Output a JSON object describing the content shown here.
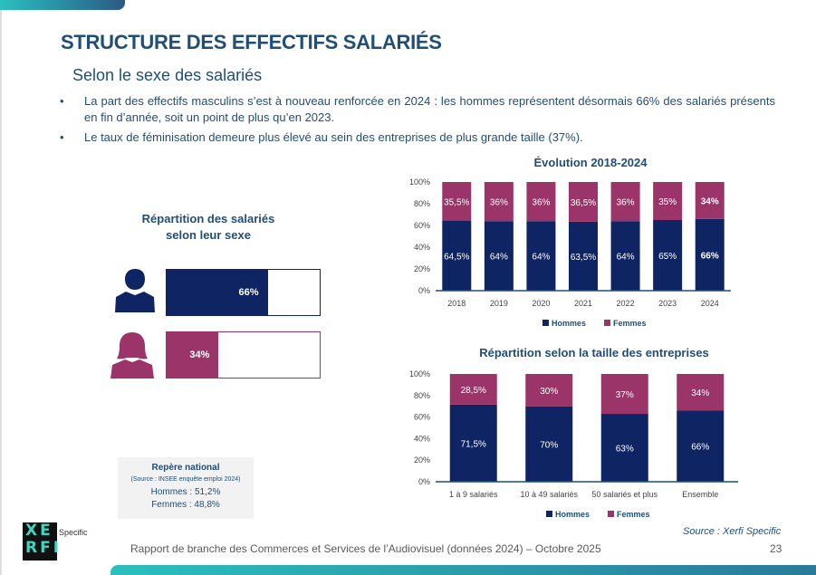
{
  "title": "STRUCTURE DES EFFECTIFS SALARIÉS",
  "subtitle": "Selon le sexe des salariés",
  "bullets": [
    "La part des effectifs masculins s’est à nouveau renforcée en 2024 : les hommes représentent désormais 66% des salariés présents en fin d’année, soit un point de plus qu’en 2023.",
    "Le taux de féminisation demeure plus élevé au sein des entreprises de plus grande taille (37%)."
  ],
  "colors": {
    "hommes": "#0f2462",
    "femmes": "#9b3468",
    "title": "#1f4e79"
  },
  "repartition": {
    "title_line1": "Répartition des salariés",
    "title_line2": "selon leur sexe",
    "hommes": {
      "icon": "man-icon",
      "value": 66,
      "label": "66%"
    },
    "femmes": {
      "icon": "woman-icon",
      "value": 34,
      "label": "34%"
    }
  },
  "repere": {
    "title": "Repère national",
    "source": "(Source : INSEE enquête emploi 2024)",
    "hommes": "Hommes : 51,2%",
    "femmes": "Femmes : 48,8%"
  },
  "chart_data": [
    {
      "type": "bar",
      "stacked": true,
      "title": "Évolution 2018-2024",
      "categories": [
        "2018",
        "2019",
        "2020",
        "2021",
        "2022",
        "2023",
        "2024"
      ],
      "ylim": [
        0,
        100
      ],
      "yticks": [
        "0%",
        "20%",
        "40%",
        "60%",
        "80%",
        "100%"
      ],
      "legend": "bottom",
      "series": [
        {
          "name": "Hommes",
          "values": [
            64.5,
            64,
            64,
            63.5,
            64,
            65,
            66
          ],
          "labels": [
            "64,5%",
            "64%",
            "64%",
            "63,5%",
            "64%",
            "65%",
            "66%"
          ]
        },
        {
          "name": "Femmes",
          "values": [
            35.5,
            36,
            36,
            36.5,
            36,
            35,
            34
          ],
          "labels": [
            "35,5%",
            "36%",
            "36%",
            "36,5%",
            "36%",
            "35%",
            "34%"
          ]
        }
      ]
    },
    {
      "type": "bar",
      "stacked": true,
      "title": "Répartition selon la taille des entreprises",
      "categories": [
        "1 à 9 salariés",
        "10 à 49 salariés",
        "50 salariés et plus",
        "Ensemble"
      ],
      "ylim": [
        0,
        100
      ],
      "yticks": [
        "0%",
        "20%",
        "40%",
        "60%",
        "80%",
        "100%"
      ],
      "legend": "bottom",
      "series": [
        {
          "name": "Hommes",
          "values": [
            71.5,
            70,
            63,
            66
          ],
          "labels": [
            "71,5%",
            "70%",
            "63%",
            "66%"
          ]
        },
        {
          "name": "Femmes",
          "values": [
            28.5,
            30,
            37,
            34
          ],
          "labels": [
            "28,5%",
            "30%",
            "37%",
            "34%"
          ]
        }
      ]
    }
  ],
  "source": "Source : Xerfi Specific",
  "footer": "Rapport de branche des Commerces et Services de l’Audiovisuel (données 2024) – Octobre 2025",
  "page": "23",
  "logo": {
    "text": "XERFI",
    "tag": "Specific"
  }
}
